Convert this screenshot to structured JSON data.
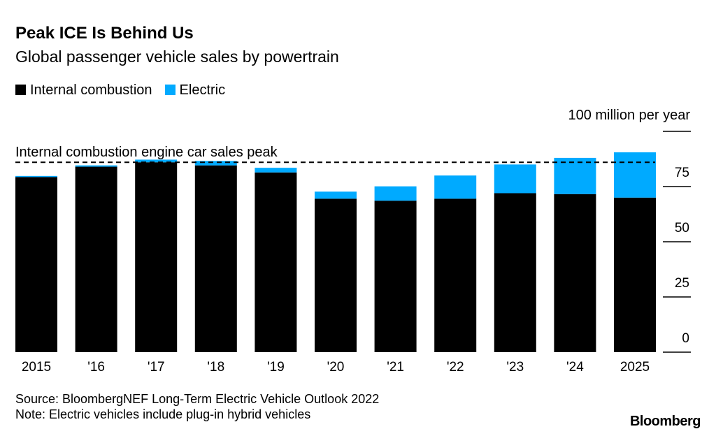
{
  "header": {
    "title": "Peak ICE Is Behind Us",
    "subtitle": "Global passenger vehicle sales by powertrain"
  },
  "legend": [
    {
      "label": "Internal combustion",
      "color": "#000000"
    },
    {
      "label": "Electric",
      "color": "#00aaff"
    }
  ],
  "footer": {
    "source": "Source: BloombergNEF Long-Term Electric Vehicle Outlook 2022",
    "note": "Note: Electric vehicles include plug-in hybrid vehicles",
    "logo": "Bloomberg"
  },
  "chart_data": {
    "type": "bar",
    "stacked": true,
    "title": "Peak ICE Is Behind Us",
    "subtitle": "Global passenger vehicle sales by powertrain",
    "unit_label": "100 million per year",
    "categories": [
      "2015",
      "'16",
      "'17",
      "'18",
      "'19",
      "'20",
      "'21",
      "'22",
      "'23",
      "'24",
      "2025"
    ],
    "series": [
      {
        "name": "Internal combustion",
        "color": "#000000",
        "values": [
          79.3,
          84.0,
          86.0,
          84.6,
          81.4,
          69.5,
          68.6,
          69.5,
          72.0,
          71.6,
          70.0
        ]
      },
      {
        "name": "Electric",
        "color": "#00aaff",
        "values": [
          0.5,
          0.6,
          1.2,
          2.0,
          2.1,
          3.2,
          6.5,
          10.5,
          13.0,
          16.4,
          20.5
        ]
      }
    ],
    "yticks": [
      0,
      25,
      50,
      75,
      100
    ],
    "ytick_labels": [
      "0",
      "25",
      "50",
      "75",
      ""
    ],
    "ylim": [
      0,
      100
    ],
    "y_axis_position": "right",
    "grid": false,
    "legend_position": "top-left",
    "annotations": [
      {
        "text": "Internal combustion engine car sales peak",
        "y": 86.0,
        "style": "dashed"
      }
    ]
  }
}
